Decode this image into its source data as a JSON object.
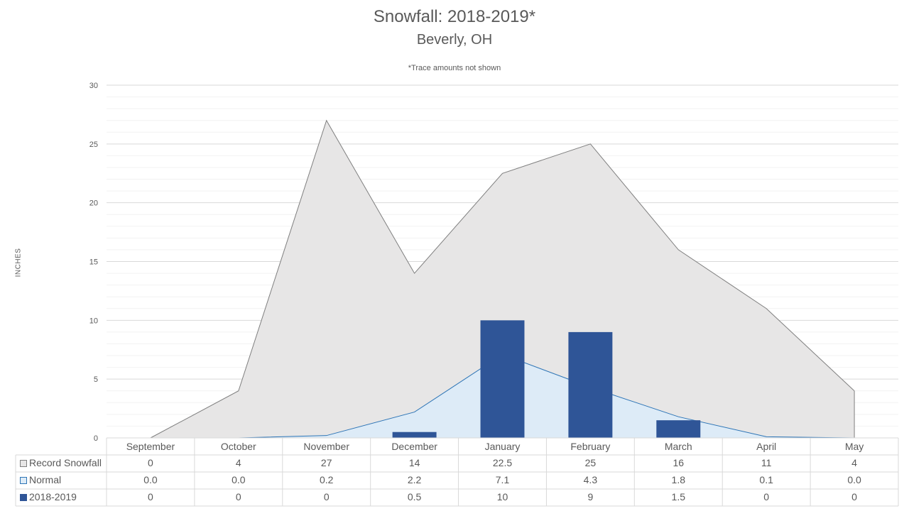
{
  "chart_data": {
    "type": "bar",
    "title": "Snowfall: 2018-2019*",
    "subtitle": "Beverly, OH",
    "note": "*Trace amounts not shown",
    "ylabel": "INCHES",
    "xlabel": "",
    "ylim": [
      0,
      30
    ],
    "yticks": [
      "0",
      "5",
      "10",
      "15",
      "20",
      "25",
      "30"
    ],
    "grid": true,
    "legend": "data-table",
    "categories": [
      "September",
      "October",
      "November",
      "December",
      "January",
      "February",
      "March",
      "April",
      "May"
    ],
    "series": [
      {
        "name": "Record Snowfall",
        "type": "area",
        "color": "#e7e6e6",
        "line_color": "#7f7f7f",
        "values": [
          0,
          4,
          27,
          14,
          22.5,
          25,
          16,
          11,
          4
        ],
        "labels": [
          "0",
          "4",
          "27",
          "14",
          "22.5",
          "25",
          "16",
          "11",
          "4"
        ]
      },
      {
        "name": "Normal",
        "type": "area",
        "color": "#ddebf7",
        "line_color": "#2e75b6",
        "values": [
          0.0,
          0.0,
          0.2,
          2.2,
          7.1,
          4.3,
          1.8,
          0.1,
          0.0
        ],
        "labels": [
          "0.0",
          "0.0",
          "0.2",
          "2.2",
          "7.1",
          "4.3",
          "1.8",
          "0.1",
          "0.0"
        ]
      },
      {
        "name": "2018-2019",
        "type": "bar",
        "color": "#2f5597",
        "values": [
          0,
          0,
          0,
          0.5,
          10,
          9,
          1.5,
          0,
          0
        ],
        "labels": [
          "0",
          "0",
          "0",
          "0.5",
          "10",
          "9",
          "1.5",
          "0",
          "0"
        ]
      }
    ]
  }
}
